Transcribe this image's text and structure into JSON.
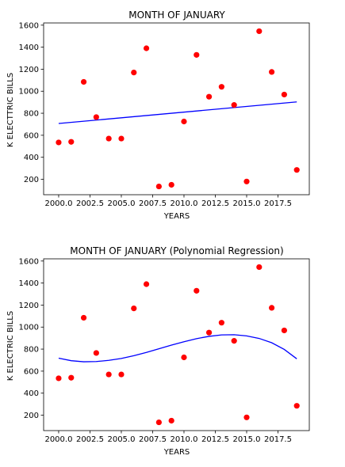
{
  "chart_data": [
    {
      "type": "scatter",
      "title": "MONTH OF JANUARY",
      "xlabel": "YEARS",
      "ylabel": "K ELECTTRIC BILLS",
      "xlim": [
        1998.8,
        2020.0
      ],
      "ylim": [
        60,
        1620
      ],
      "x_ticks": [
        "2000.0",
        "2002.5",
        "2005.0",
        "2007.5",
        "2010.0",
        "2012.5",
        "2015.0",
        "2017.5"
      ],
      "x_tick_values": [
        2000,
        2002.5,
        2005,
        2007.5,
        2010,
        2012.5,
        2015,
        2017.5
      ],
      "y_ticks": [
        "200",
        "400",
        "600",
        "800",
        "1000",
        "1200",
        "1400",
        "1600"
      ],
      "y_tick_values": [
        200,
        400,
        600,
        800,
        1000,
        1200,
        1400,
        1600
      ],
      "points": {
        "x": [
          2000,
          2001,
          2002,
          2003,
          2004,
          2005,
          2006,
          2007,
          2008,
          2009,
          2010,
          2011,
          2012,
          2013,
          2014,
          2015,
          2016,
          2017,
          2018,
          2019
        ],
        "y": [
          535,
          540,
          1085,
          765,
          570,
          570,
          1170,
          1390,
          135,
          150,
          725,
          1330,
          950,
          1040,
          875,
          180,
          1545,
          1175,
          970,
          285
        ]
      },
      "fit_line": {
        "x": [
          2000,
          2019
        ],
        "y": [
          707,
          903
        ]
      },
      "point_color": "#ff0000",
      "line_color": "#0000ff",
      "grid": false
    },
    {
      "type": "scatter",
      "title": "MONTH OF JANUARY (Polynomial Regression)",
      "xlabel": "YEARS",
      "ylabel": "K ELECTRIC BILLS",
      "xlim": [
        1998.8,
        2020.0
      ],
      "ylim": [
        60,
        1620
      ],
      "x_ticks": [
        "2000.0",
        "2002.5",
        "2005.0",
        "2007.5",
        "2010.0",
        "2012.5",
        "2015.0",
        "2017.5"
      ],
      "x_tick_values": [
        2000,
        2002.5,
        2005,
        2007.5,
        2010,
        2012.5,
        2015,
        2017.5
      ],
      "y_ticks": [
        "200",
        "400",
        "600",
        "800",
        "1000",
        "1200",
        "1400",
        "1600"
      ],
      "y_tick_values": [
        200,
        400,
        600,
        800,
        1000,
        1200,
        1400,
        1600
      ],
      "points": {
        "x": [
          2000,
          2001,
          2002,
          2003,
          2004,
          2005,
          2006,
          2007,
          2008,
          2009,
          2010,
          2011,
          2012,
          2013,
          2014,
          2015,
          2016,
          2017,
          2018,
          2019
        ],
        "y": [
          535,
          540,
          1085,
          765,
          570,
          570,
          1170,
          1390,
          135,
          150,
          725,
          1330,
          950,
          1040,
          875,
          180,
          1545,
          1175,
          970,
          285
        ]
      },
      "fit_line": {
        "x": [
          2000,
          2001,
          2002,
          2003,
          2004,
          2005,
          2006,
          2007,
          2008,
          2009,
          2010,
          2011,
          2012,
          2013,
          2014,
          2015,
          2016,
          2017,
          2018,
          2019
        ],
        "y": [
          718,
          695,
          685,
          687,
          698,
          715,
          740,
          770,
          803,
          836,
          867,
          895,
          916,
          929,
          931,
          920,
          897,
          858,
          797,
          712
        ]
      },
      "point_color": "#ff0000",
      "line_color": "#0000ff",
      "grid": false
    }
  ]
}
